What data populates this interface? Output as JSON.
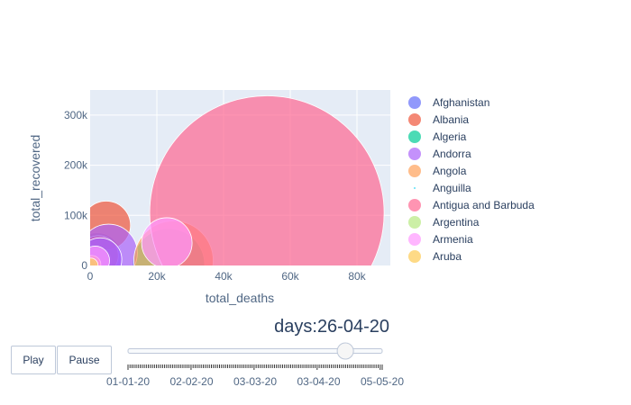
{
  "chart_data": {
    "type": "scatter",
    "xlabel": "total_deaths",
    "ylabel": "total_recovered",
    "xlim": [
      0,
      90000
    ],
    "ylim": [
      0,
      350000
    ],
    "x_ticks": [
      0,
      20000,
      40000,
      60000,
      80000
    ],
    "x_tick_labels": [
      "0",
      "20k",
      "40k",
      "60k",
      "80k"
    ],
    "y_ticks": [
      0,
      100000,
      200000,
      300000
    ],
    "y_tick_labels": [
      "0",
      "100k",
      "200k",
      "300k"
    ],
    "grid": true,
    "legend_position": "right",
    "series": [
      {
        "name": "Afghanistan",
        "color": "#636efa",
        "points": [
          {
            "x": 2000,
            "y": 15000,
            "size": 28
          },
          {
            "x": 1000,
            "y": 6000,
            "size": 20
          },
          {
            "x": 0,
            "y": 0,
            "size": 6
          }
        ]
      },
      {
        "name": "Albania",
        "color": "#EF553B",
        "points": [
          {
            "x": 4800,
            "y": 80000,
            "size": 27
          },
          {
            "x": 2500,
            "y": 20000,
            "size": 22
          }
        ]
      },
      {
        "name": "Algeria",
        "color": "#00cc96",
        "points": [
          {
            "x": 23500,
            "y": 2000,
            "size": 40
          }
        ]
      },
      {
        "name": "Andorra",
        "color": "#ab63fa",
        "points": [
          {
            "x": 5500,
            "y": 25000,
            "size": 32
          },
          {
            "x": 3000,
            "y": 12000,
            "size": 24
          }
        ]
      },
      {
        "name": "Angola",
        "color": "#FFA15A",
        "points": [
          {
            "x": 25000,
            "y": 10000,
            "size": 44
          },
          {
            "x": 500,
            "y": 2000,
            "size": 10
          }
        ]
      },
      {
        "name": "Anguilla",
        "color": "#19d3f3",
        "points": [
          {
            "x": 0,
            "y": 0,
            "size": 2
          }
        ]
      },
      {
        "name": "Antigua and Barbuda",
        "color": "#FF6692",
        "points": [
          {
            "x": 53000,
            "y": 105000,
            "size": 130
          }
        ]
      },
      {
        "name": "Argentina",
        "color": "#B6E880",
        "points": [
          {
            "x": 100,
            "y": 500,
            "size": 6
          }
        ]
      },
      {
        "name": "Armenia",
        "color": "#FF97FF",
        "points": [
          {
            "x": 23000,
            "y": 45000,
            "size": 28
          },
          {
            "x": 1500,
            "y": 10000,
            "size": 16
          }
        ]
      },
      {
        "name": "Aruba",
        "color": "#FECB52",
        "points": [
          {
            "x": 200,
            "y": 300,
            "size": 8
          }
        ]
      }
    ]
  },
  "slider": {
    "prefix": "days:",
    "current": "26-04-20",
    "current_fraction": 0.855,
    "tick_count": 126,
    "labels": [
      "01-01-20",
      "02-02-20",
      "03-03-20",
      "03-04-20",
      "05-05-20"
    ]
  },
  "buttons": {
    "play_label": "Play",
    "pause_label": "Pause"
  }
}
